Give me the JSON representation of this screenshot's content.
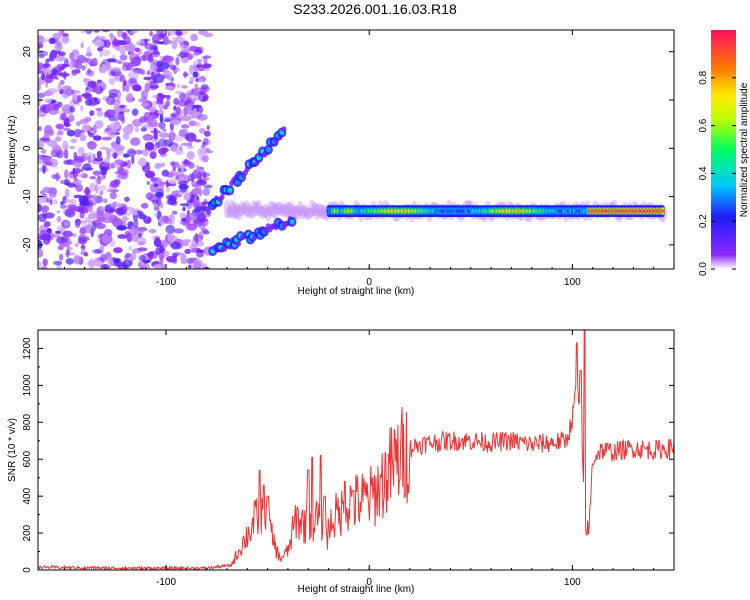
{
  "figure": {
    "title": "S233.2026.001.16.03.R18"
  },
  "chart_data": [
    {
      "type": "heatmap",
      "name": "spectrogram",
      "xlabel": "Height of straight line (km)",
      "ylabel": "Frequency (Hz)",
      "xlim": [
        -163,
        150
      ],
      "ylim": [
        -25,
        24.5
      ],
      "xticks": [
        -100,
        0,
        100
      ],
      "yticks": [
        -20,
        -10,
        0,
        10,
        20
      ],
      "features": [
        {
          "kind": "noise-region",
          "x_range": [
            -163,
            -79
          ],
          "y_range": [
            -25,
            24.5
          ],
          "amplitude_range": [
            0.03,
            0.2
          ]
        },
        {
          "kind": "main-tone",
          "x_range": [
            -20,
            145
          ],
          "frequency": -13,
          "peak_amplitude": 0.9
        },
        {
          "kind": "upper-branch",
          "x_start": -80,
          "x_end": -42,
          "f_start": -13,
          "f_end": 3.5
        },
        {
          "kind": "lower-branch",
          "x_start": -77,
          "x_end": -38,
          "f_start": -21,
          "f_end": -15
        }
      ],
      "colorbar": {
        "label": "Normalized spectral amplitude",
        "range": [
          0.0,
          1.0
        ],
        "ticks": [
          0.0,
          0.2,
          0.4,
          0.6,
          0.8
        ],
        "tick_labels": [
          "0.0",
          "0.2",
          "0.4",
          "0.6",
          "0.8"
        ]
      }
    },
    {
      "type": "line",
      "name": "snr",
      "xlabel": "Height of straight line (km)",
      "ylabel": "SNR (10 * v/v)",
      "xlim": [
        -163,
        150
      ],
      "ylim": [
        0,
        1300
      ],
      "xticks": [
        -100,
        0,
        100
      ],
      "yticks": [
        0,
        200,
        400,
        600,
        800,
        1000,
        1200
      ],
      "color": "#ee3333",
      "series": [
        {
          "name": "SNR",
          "x": [
            -163,
            -140,
            -110,
            -80,
            -68,
            -62,
            -56,
            -52,
            -50,
            -48,
            -44,
            -40,
            -36,
            -32,
            -28,
            -24,
            -21,
            -18,
            -14,
            -10,
            -6,
            -2,
            2,
            6,
            10,
            15,
            20,
            25,
            30,
            40,
            50,
            60,
            70,
            80,
            90,
            97,
            100,
            102,
            104,
            106,
            108,
            110,
            114,
            120,
            130,
            140,
            150
          ],
          "y": [
            15,
            12,
            10,
            10,
            25,
            150,
            270,
            330,
            300,
            180,
            60,
            100,
            280,
            250,
            270,
            280,
            180,
            280,
            310,
            360,
            370,
            380,
            400,
            470,
            540,
            610,
            660,
            680,
            690,
            700,
            700,
            690,
            700,
            680,
            690,
            700,
            820,
            1000,
            850,
            300,
            200,
            600,
            650,
            640,
            660,
            650,
            660
          ]
        }
      ],
      "spikes": [
        {
          "x": -54,
          "y": 540
        },
        {
          "x": -52,
          "y": 460
        },
        {
          "x": -50,
          "y": 400
        },
        {
          "x": -30,
          "y": 540
        },
        {
          "x": -28,
          "y": 610
        },
        {
          "x": -24,
          "y": 620
        },
        {
          "x": -22,
          "y": 400
        },
        {
          "x": -12,
          "y": 480
        },
        {
          "x": -8,
          "y": 430
        },
        {
          "x": 102,
          "y": 1230
        },
        {
          "x": 104,
          "y": 1080
        },
        {
          "x": 106,
          "y": 1300
        },
        {
          "x": 107,
          "y": 190
        }
      ]
    }
  ]
}
